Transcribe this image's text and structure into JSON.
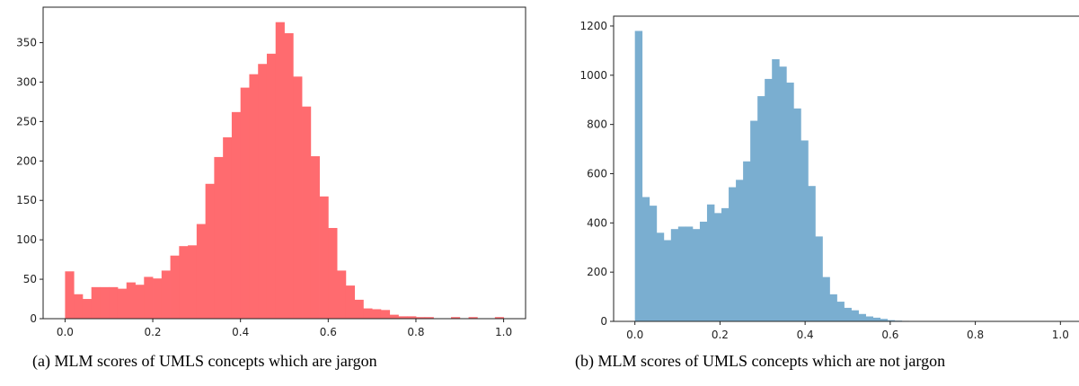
{
  "chart_data": [
    {
      "type": "bar",
      "histogram": true,
      "caption": "(a) MLM scores of UMLS concepts which are jargon",
      "color": "#ff6b6f",
      "xlim": [
        -0.05,
        1.05
      ],
      "ylim": [
        0,
        395
      ],
      "xticks": [
        0.0,
        0.2,
        0.4,
        0.6,
        0.8,
        1.0
      ],
      "xtick_labels": [
        "0.0",
        "0.2",
        "0.4",
        "0.6",
        "0.8",
        "1.0"
      ],
      "yticks": [
        0,
        50,
        100,
        150,
        200,
        250,
        300,
        350
      ],
      "ytick_labels": [
        "0",
        "50",
        "100",
        "150",
        "200",
        "250",
        "300",
        "350"
      ],
      "grid": false,
      "bin_start": 0.0,
      "bin_width": 0.02,
      "values": [
        60,
        31,
        25,
        40,
        40,
        40,
        38,
        46,
        43,
        53,
        51,
        61,
        80,
        92,
        93,
        120,
        171,
        205,
        230,
        262,
        293,
        310,
        323,
        336,
        376,
        362,
        307,
        269,
        206,
        155,
        115,
        61,
        42,
        24,
        13,
        12,
        11,
        5,
        3,
        3,
        2,
        2,
        0,
        0,
        2,
        0,
        2,
        0,
        0,
        2
      ]
    },
    {
      "type": "bar",
      "histogram": true,
      "caption": "(b) MLM scores of UMLS concepts which are not jargon",
      "color": "#7aaed0",
      "xlim": [
        -0.05,
        1.05
      ],
      "ylim": [
        0,
        1240
      ],
      "xticks": [
        0.0,
        0.2,
        0.4,
        0.6,
        0.8,
        1.0
      ],
      "xtick_labels": [
        "0.0",
        "0.2",
        "0.4",
        "0.6",
        "0.8",
        "1.0"
      ],
      "yticks": [
        0,
        200,
        400,
        600,
        800,
        1000,
        1200
      ],
      "ytick_labels": [
        "0",
        "200",
        "400",
        "600",
        "800",
        "1000",
        "1200"
      ],
      "grid": false,
      "bin_start": 0.0,
      "bin_width": 0.01695,
      "values": [
        1180,
        505,
        470,
        360,
        330,
        375,
        385,
        385,
        375,
        405,
        475,
        440,
        460,
        545,
        575,
        650,
        815,
        915,
        985,
        1065,
        1035,
        970,
        865,
        735,
        550,
        345,
        180,
        110,
        80,
        55,
        45,
        30,
        20,
        15,
        10,
        5,
        3,
        2
      ]
    }
  ]
}
